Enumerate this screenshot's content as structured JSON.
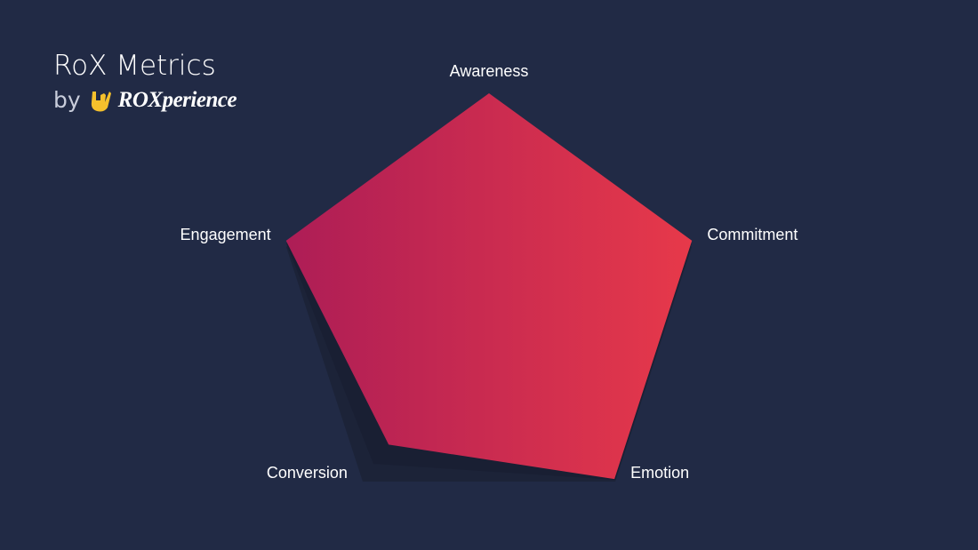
{
  "chart_data": {
    "type": "radar",
    "title": "RoX Metrics",
    "byline": "by",
    "brand": "ROXperience",
    "categories": [
      "Awareness",
      "Commitment",
      "Emotion",
      "Conversion",
      "Engagement"
    ],
    "values": [
      100,
      100,
      100,
      80,
      100
    ],
    "rlim": [
      0,
      100
    ],
    "colors": [
      "#ad1d56",
      "#e7394a"
    ]
  }
}
